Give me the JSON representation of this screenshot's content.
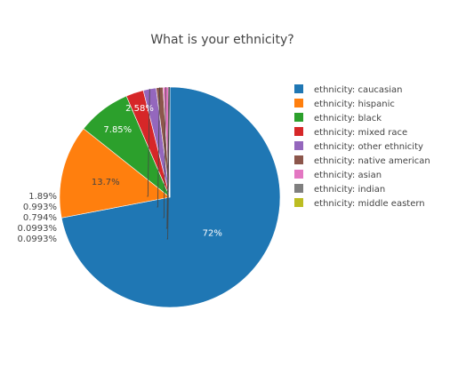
{
  "chart_data": {
    "type": "pie",
    "title": "What is your ethnicity?",
    "sort": "descending",
    "direction": "clockwise",
    "legend_position": "right",
    "slices": [
      {
        "label": "ethnicity: caucasian",
        "percent": 72,
        "text": "72%",
        "color": "#1f77b4",
        "text_color": "#ffffff"
      },
      {
        "label": "ethnicity: hispanic",
        "percent": 13.7,
        "text": "13.7%",
        "color": "#ff7f0e",
        "text_color": "#444444"
      },
      {
        "label": "ethnicity: black",
        "percent": 7.85,
        "text": "7.85%",
        "color": "#2ca02c",
        "text_color": "#ffffff"
      },
      {
        "label": "ethnicity: mixed race",
        "percent": 2.58,
        "text": "2.58%",
        "color": "#d62728",
        "text_color": "#ffffff"
      },
      {
        "label": "ethnicity: other ethnicity",
        "percent": 1.89,
        "text": "1.89%",
        "color": "#9467bd",
        "text_color": "#444444"
      },
      {
        "label": "ethnicity: native american",
        "percent": 0.993,
        "text": "0.993%",
        "color": "#8c564b",
        "text_color": "#444444"
      },
      {
        "label": "ethnicity: asian",
        "percent": 0.794,
        "text": "0.794%",
        "color": "#e377c2",
        "text_color": "#444444"
      },
      {
        "label": "ethnicity: indian",
        "percent": 0.0993,
        "text": "0.0993%",
        "color": "#7f7f7f",
        "text_color": "#444444"
      },
      {
        "label": "ethnicity: middle eastern",
        "percent": 0.0993,
        "text": "0.0993%",
        "color": "#bcbd22",
        "text_color": "#444444"
      }
    ]
  }
}
